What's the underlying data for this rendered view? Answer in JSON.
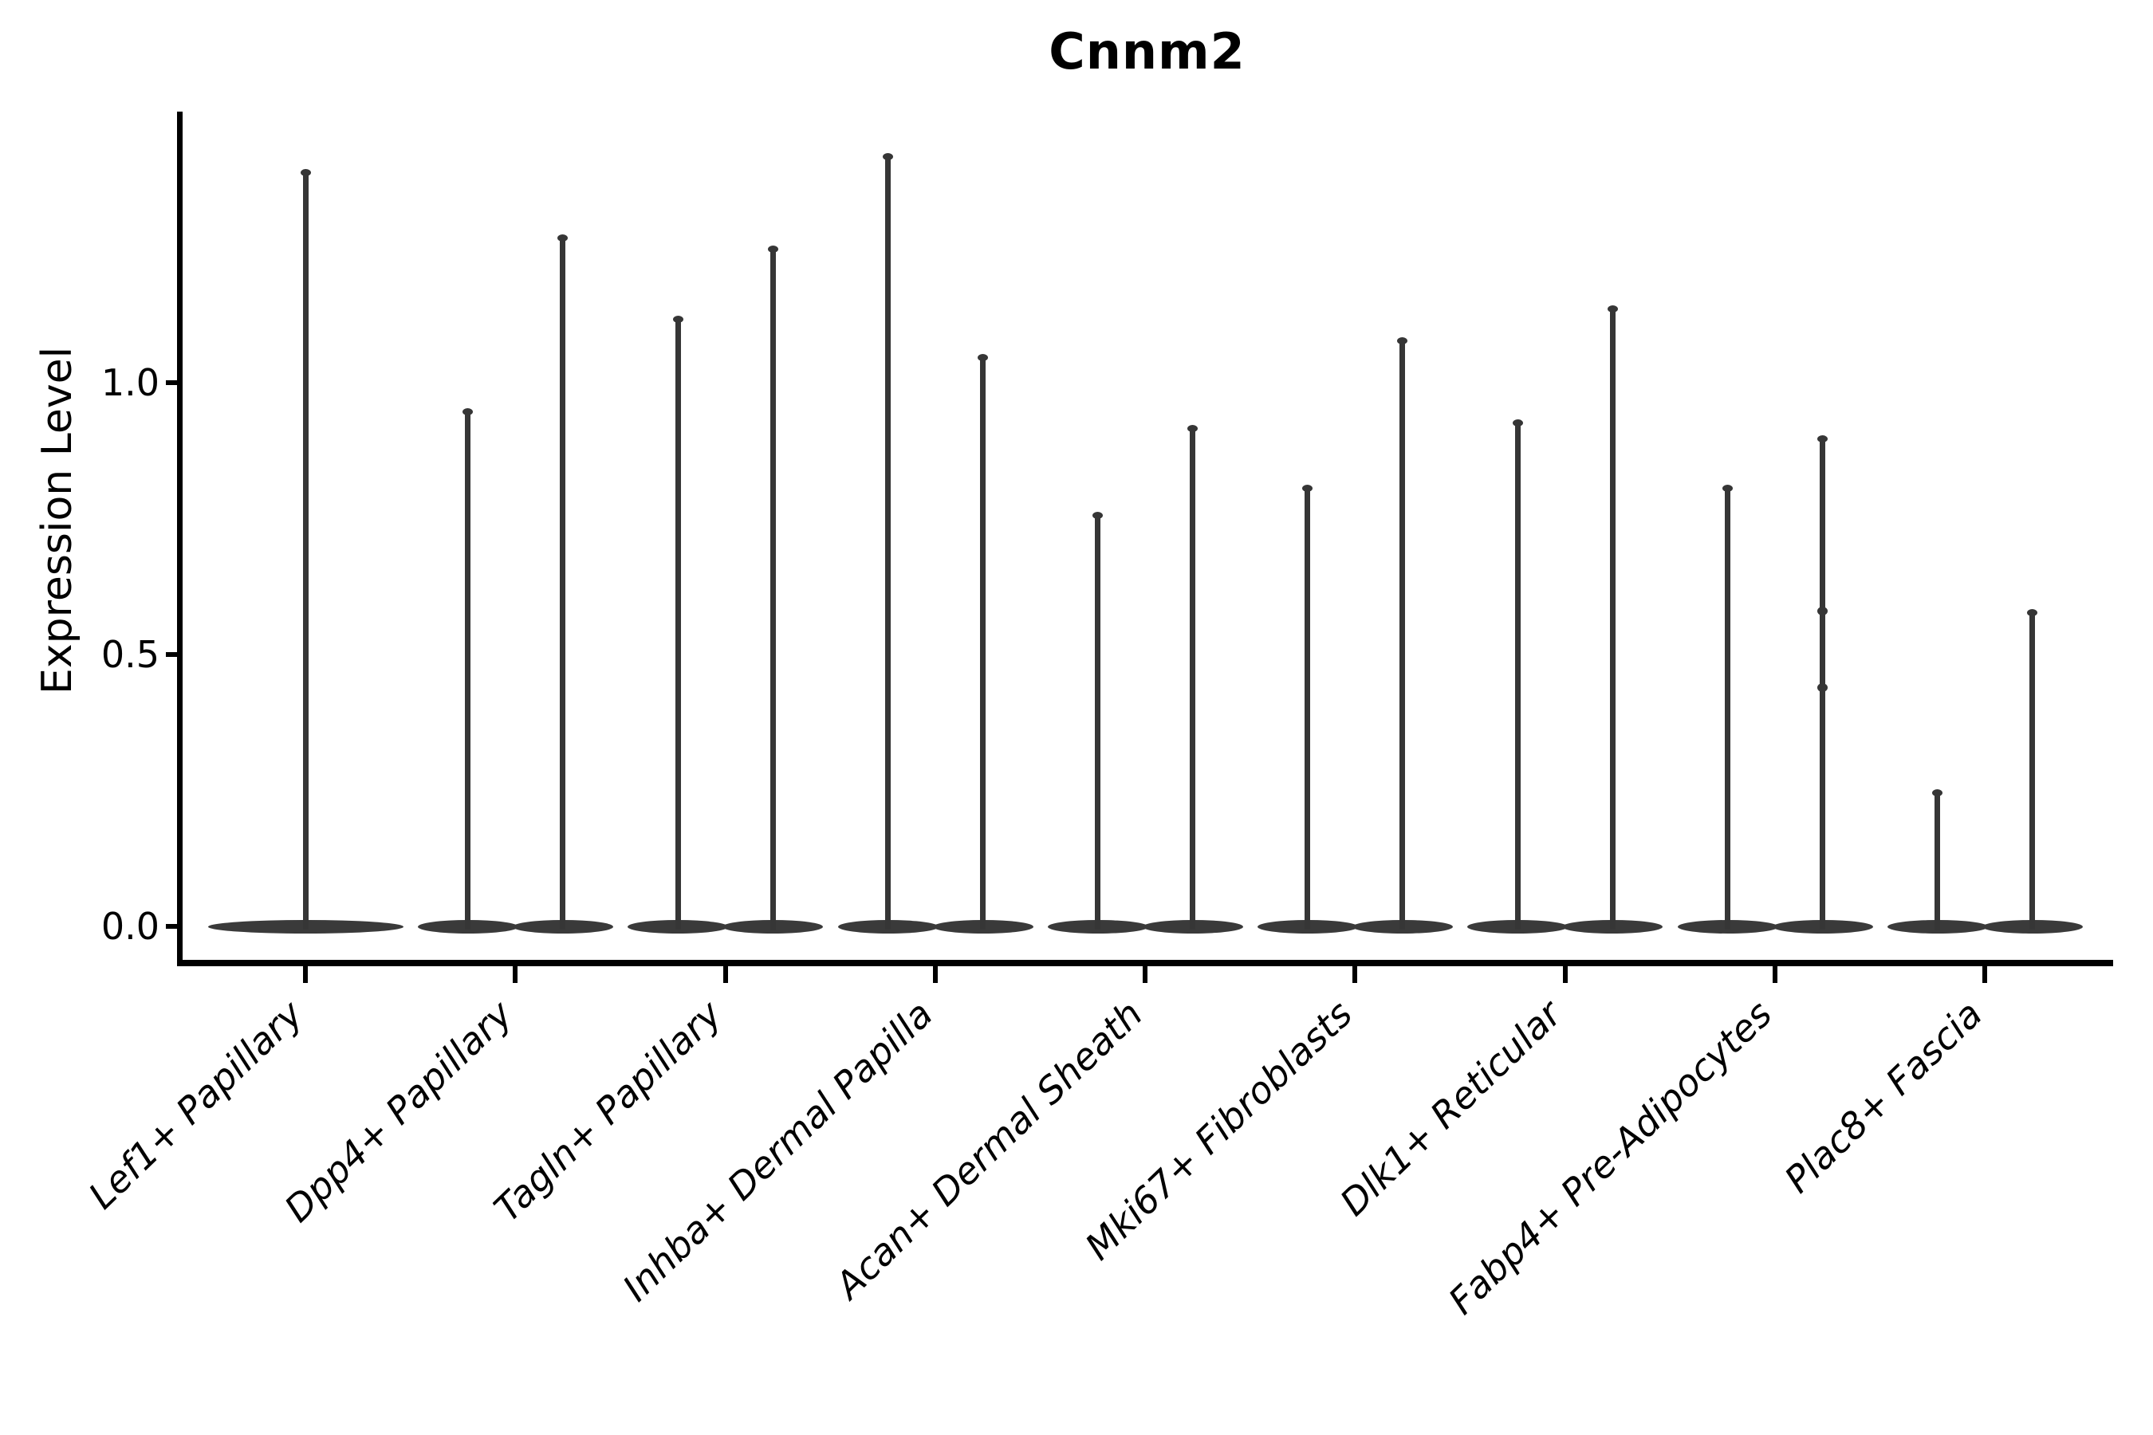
{
  "title": "Cnnm2",
  "colors": {
    "violin": "#3a3a3a",
    "spike": "#363636",
    "axis": "#000000",
    "text": "#000000",
    "background": "#ffffff"
  },
  "chart_data": {
    "type": "violin",
    "title": "Cnnm2",
    "xlabel": "",
    "ylabel": "Expression Level",
    "ylim": [
      -0.07,
      1.5
    ],
    "ytick_values": [
      0.0,
      0.5,
      1.0
    ],
    "ytick_labels": [
      "0.0",
      "0.5",
      "1.0"
    ],
    "grid": false,
    "legend": null,
    "baseline_value": 0.0,
    "distribution_note": "each violin is a flat disc at expression 0 with a thin tail rising to its max value",
    "categories": [
      {
        "label": "Lef1+ Papillary",
        "violins": [
          {
            "max": 1.39
          }
        ]
      },
      {
        "label": "Dpp4+ Papillary",
        "violins": [
          {
            "max": 0.95
          },
          {
            "max": 1.27
          }
        ]
      },
      {
        "label": "Tagln+ Papillary",
        "violins": [
          {
            "max": 1.12
          },
          {
            "max": 1.25
          }
        ]
      },
      {
        "label": "Inhba+ Dermal Papilla",
        "violins": [
          {
            "max": 1.42
          },
          {
            "max": 1.05
          }
        ]
      },
      {
        "label": "Acan+ Dermal Sheath",
        "violins": [
          {
            "max": 0.76
          },
          {
            "max": 0.92
          }
        ]
      },
      {
        "label": "Mki67+ Fibroblasts",
        "violins": [
          {
            "max": 0.81
          },
          {
            "max": 1.08
          }
        ]
      },
      {
        "label": "Dlk1+ Reticular",
        "violins": [
          {
            "max": 0.93
          },
          {
            "max": 1.14
          }
        ]
      },
      {
        "label": "Fabp4+ Pre-Adipocytes",
        "violins": [
          {
            "max": 0.81
          },
          {
            "max": 0.9,
            "bumps": [
              0.58,
              0.44
            ]
          }
        ]
      },
      {
        "label": "Plac8+ Fascia",
        "violins": [
          {
            "max": 0.25
          },
          {
            "max": 0.58
          }
        ]
      }
    ]
  }
}
